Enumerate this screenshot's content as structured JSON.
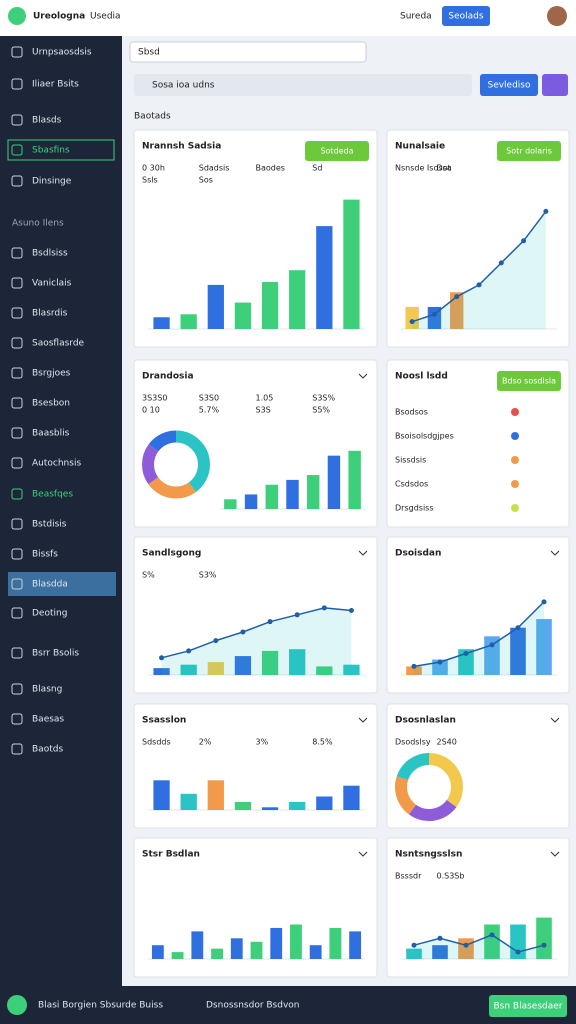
{
  "header": {
    "brand": "Ureologna",
    "brand_tag": "Usedia",
    "search": "Sureda",
    "button": "Seolads"
  },
  "sidebar": {
    "items": [
      "Urnpsaosdsis",
      "Iliaer Bsits",
      "Blasds",
      "Sbasfins",
      "Dinsinge",
      "Bsdlsiss",
      "Vaniclais",
      "Blasrdis",
      "Saosflasrde",
      "Bsrgjoes",
      "Bsesbon",
      "Baasblis",
      "Autochnsis",
      "Beasfqes",
      "Bstdisis",
      "Bissfs",
      "Blasdda",
      "Deoting",
      "Bsrr Bsolis",
      "Blasng",
      "Baesas",
      "Baotds"
    ],
    "section": "Asuno Ilens"
  },
  "toolbar": {
    "select": "Sbsd",
    "search": "Sosa ioa udns",
    "button": "Sevlediso",
    "filter": "Baotads"
  },
  "panels": [
    {
      "title": "Nrannsh Sadsia",
      "button": "Sotdeda",
      "labels": [
        "0 30h",
        "Sdadsis",
        "Baodes",
        "Sd",
        "Ssls",
        "Sos"
      ],
      "ylim": [
        0,
        100
      ],
      "bars": [
        8,
        10,
        30,
        18,
        32,
        40,
        70,
        88
      ],
      "colors": [
        "#2f6fe0",
        "#3ecf7a",
        "#2f6fe0",
        "#3ecf7a",
        "#3ecf7a",
        "#3ecf7a",
        "#2f6fe0",
        "#3ecf7a"
      ]
    },
    {
      "title": "Nunalsaie",
      "button": "Sotr dolaris",
      "labels": [
        "Nsnsde Isdsot",
        "Dsa"
      ],
      "ylim": [
        0,
        100
      ],
      "bars": [
        15,
        15,
        25
      ],
      "colors": [
        "#f2c94c",
        "#2f6fe0",
        "#f2994a"
      ],
      "line": [
        5,
        10,
        22,
        30,
        45,
        60,
        80
      ]
    },
    {
      "title": "Drandosia",
      "labels": [
        "3S3S0",
        "S3S0",
        "1.05",
        "S3S%",
        "0 10",
        "5.7%",
        "S3S",
        "S5%"
      ],
      "ylim": [
        0,
        100
      ],
      "donut": [
        40,
        25,
        20,
        15
      ],
      "donut_colors": [
        "#2bc4c4",
        "#f2994a",
        "#8e5bd9",
        "#2f6fe0"
      ],
      "bars": [
        10,
        15,
        25,
        30,
        35,
        55,
        60
      ],
      "colors": [
        "#3ecf7a",
        "#2f6fe0",
        "#3ecf7a",
        "#2f6fe0",
        "#3ecf7a",
        "#2f6fe0",
        "#3ecf7a"
      ]
    },
    {
      "title": "Noosl lsdd",
      "button": "Bdso sosdlsla",
      "labels": [
        "Bsodsos",
        "Bsoisolsdgjpes",
        "Sissdsis",
        "Csdsdos",
        "Drsgdsiss"
      ]
    },
    {
      "title": "Sandlsgong",
      "labels": [
        "S%",
        "S3%"
      ],
      "ylim": [
        0,
        100
      ],
      "bars": [
        8,
        12,
        15,
        22,
        28,
        30,
        10,
        12
      ],
      "colors": [
        "#2f6fe0",
        "#2bc4c4",
        "#f2c94c",
        "#2f6fe0",
        "#3ecf7a",
        "#2bc4c4",
        "#3ecf7a",
        "#2bc4c4"
      ],
      "line": [
        20,
        28,
        40,
        50,
        62,
        70,
        78,
        75
      ]
    },
    {
      "title": "Dsoisdan",
      "ylim": [
        0,
        100
      ],
      "bars": [
        10,
        18,
        30,
        45,
        55,
        65
      ],
      "colors": [
        "#f2994a",
        "#5aa9ef",
        "#2bc4c4",
        "#5aa9ef",
        "#2f6fe0",
        "#5aa9ef"
      ],
      "line": [
        10,
        15,
        25,
        35,
        55,
        85
      ]
    },
    {
      "title": "Ssasslon",
      "labels": [
        "Sdsdds",
        "2%",
        "3%",
        "8.5%"
      ],
      "ylim": [
        0,
        100
      ],
      "bars": [
        55,
        30,
        55,
        15,
        5,
        15,
        25,
        45
      ],
      "colors": [
        "#2f6fe0",
        "#2bc4c4",
        "#f2994a",
        "#3ecf7a",
        "#2f6fe0",
        "#2bc4c4",
        "#2f6fe0",
        "#2f6fe0"
      ]
    },
    {
      "title": "Dsosnlaslan",
      "labels": [
        "Dsodslsy",
        "2S40"
      ],
      "donut": [
        35,
        25,
        20,
        20
      ],
      "donut_colors": [
        "#f2c94c",
        "#8e5bd9",
        "#f2994a",
        "#2bc4c4"
      ]
    },
    {
      "title": "Stsr Bsdlan",
      "ylim": [
        0,
        100
      ],
      "bars": [
        20,
        10,
        40,
        15,
        30,
        25,
        45,
        50,
        20,
        45,
        40
      ],
      "colors": [
        "#2f6fe0",
        "#3ecf7a",
        "#2f6fe0",
        "#3ecf7a",
        "#2f6fe0",
        "#3ecf7a",
        "#2f6fe0",
        "#3ecf7a",
        "#2f6fe0",
        "#3ecf7a",
        "#2f6fe0"
      ]
    },
    {
      "title": "Nsntsngsslsn",
      "labels": [
        "Bsssdr",
        "0.S3Sb"
      ],
      "ylim": [
        0,
        100
      ],
      "bars": [
        15,
        20,
        30,
        50,
        50,
        60
      ],
      "colors": [
        "#2bc4c4",
        "#2f6fe0",
        "#f2994a",
        "#3ecf7a",
        "#2bc4c4",
        "#3ecf7a"
      ],
      "line": [
        20,
        30,
        20,
        35,
        10,
        20
      ]
    }
  ],
  "footer": {
    "left": "Blasi Borgien Sbsurde Buiss",
    "middle": "Dsnossnsdor Bsdvon",
    "button": "Bsn Blasesdaer"
  }
}
